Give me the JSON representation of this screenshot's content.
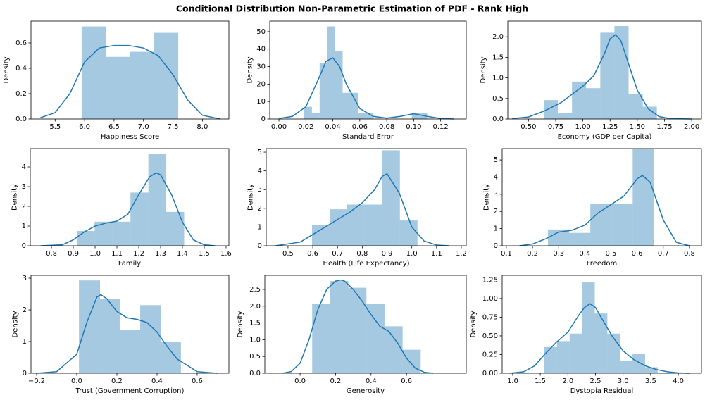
{
  "title": "Conditional Distribution Non-Parametric Estimation of PDF - Rank High",
  "chart_data": [
    {
      "type": "histogram",
      "xlabel": "Happiness Score",
      "ylabel": "Density",
      "color": "#1f77b4",
      "bins": [
        5.95,
        6.36,
        6.77,
        7.18,
        7.59
      ],
      "counts": [
        0.73,
        0.49,
        0.53,
        0.68
      ],
      "kde": {
        "x": [
          5.25,
          5.5,
          5.75,
          6.0,
          6.25,
          6.5,
          6.75,
          7.0,
          7.25,
          7.5,
          7.75,
          8.0,
          8.3
        ],
        "y": [
          0.01,
          0.05,
          0.2,
          0.45,
          0.56,
          0.58,
          0.58,
          0.56,
          0.5,
          0.35,
          0.15,
          0.03,
          0.0
        ]
      },
      "xlim": [
        5.09,
        8.45
      ],
      "ylim": [
        0,
        0.772
      ],
      "xticks": [
        5.5,
        {
          "value": 6,
          "label": "6.0"
        },
        6.5,
        {
          "value": 7,
          "label": "7.0"
        },
        7.5,
        {
          "value": 8,
          "label": "8.0"
        }
      ],
      "yticks": [
        {
          "value": 0,
          "label": "0.0"
        },
        0.2,
        0.4,
        0.6
      ]
    },
    {
      "type": "histogram",
      "xlabel": "Standard Error",
      "ylabel": "Density",
      "color": "#1f77b4",
      "bins": [
        0.0188,
        0.0245,
        0.0302,
        0.0359,
        0.0416,
        0.0473,
        0.053,
        0.0587,
        0.0644,
        0.0701,
        0.0758,
        0.0815,
        0.0872,
        0.0929,
        0.0986,
        0.1043,
        0.11
      ],
      "counts": [
        7,
        3.5,
        32,
        53,
        39,
        15,
        15,
        3.5,
        3.5,
        0,
        0,
        0,
        0,
        0,
        3.5,
        3.5
      ],
      "kde": {
        "x": [
          0,
          0.01,
          0.02,
          0.03,
          0.035,
          0.04,
          0.045,
          0.05,
          0.06,
          0.07,
          0.08,
          0.09,
          0.1,
          0.11,
          0.12,
          0.13
        ],
        "y": [
          0.3,
          1.5,
          7,
          24,
          33,
          35,
          30,
          20,
          6,
          1.5,
          0.5,
          1.5,
          3,
          1.5,
          0.3,
          0
        ]
      },
      "xlim": [
        -0.0068,
        0.139
      ],
      "ylim": [
        0,
        56
      ],
      "xticks": [
        {
          "value": 0,
          "label": "0.00"
        },
        0.02,
        0.04,
        0.06,
        0.08,
        {
          "value": 0.1,
          "label": "0.10"
        },
        0.12
      ],
      "yticks": [
        0,
        10,
        20,
        30,
        40,
        50
      ]
    },
    {
      "type": "histogram",
      "xlabel": "Economy (GDP per Capita)",
      "ylabel": "Density",
      "color": "#1f77b4",
      "bins": [
        0.64,
        0.77,
        0.9,
        1.03,
        1.16,
        1.29,
        1.42,
        1.55,
        1.68
      ],
      "counts": [
        0.46,
        0.15,
        0.91,
        0.75,
        2.1,
        2.26,
        0.61,
        0.3
      ],
      "kde": {
        "x": [
          0.35,
          0.5,
          0.65,
          0.8,
          0.9,
          1.0,
          1.1,
          1.2,
          1.25,
          1.3,
          1.35,
          1.4,
          1.5,
          1.6,
          1.7,
          1.8,
          2.0
        ],
        "y": [
          0.01,
          0.05,
          0.2,
          0.4,
          0.6,
          0.8,
          1.05,
          1.6,
          1.95,
          2.05,
          1.9,
          1.5,
          0.7,
          0.25,
          0.06,
          0.01,
          0
        ]
      },
      "xlim": [
        0.31,
        2.09
      ],
      "ylim": [
        0,
        2.38
      ],
      "xticks": [
        {
          "value": 0.5,
          "label": "0.50"
        },
        0.75,
        {
          "value": 1,
          "label": "1.00"
        },
        1.25,
        {
          "value": 1.5,
          "label": "1.50"
        },
        1.75,
        {
          "value": 2,
          "label": "2.00"
        }
      ],
      "yticks": [
        {
          "value": 0,
          "label": "0.0"
        },
        0.5,
        {
          "value": 1,
          "label": "1.0"
        },
        1.5,
        {
          "value": 2,
          "label": "2.0"
        }
      ]
    },
    {
      "type": "histogram",
      "xlabel": "Family",
      "ylabel": "Density",
      "color": "#1f77b4",
      "bins": [
        0.916,
        0.998,
        1.08,
        1.162,
        1.244,
        1.326,
        1.408
      ],
      "counts": [
        0.75,
        1.22,
        1.22,
        2.7,
        4.65,
        1.72
      ],
      "kde": {
        "x": [
          0.75,
          0.85,
          0.9,
          0.95,
          1.0,
          1.05,
          1.1,
          1.15,
          1.2,
          1.25,
          1.28,
          1.3,
          1.35,
          1.4,
          1.45,
          1.5,
          1.55
        ],
        "y": [
          0,
          0.05,
          0.3,
          0.7,
          1.0,
          1.15,
          1.25,
          1.6,
          2.6,
          3.5,
          3.7,
          3.6,
          2.6,
          1.2,
          0.3,
          0.05,
          0
        ]
      },
      "xlim": [
        0.703,
        1.613
      ],
      "ylim": [
        0,
        4.93
      ],
      "xticks": [
        0.8,
        0.9,
        {
          "value": 1,
          "label": "1.0"
        },
        1.1,
        1.2,
        1.3,
        1.4,
        1.5,
        1.6
      ],
      "yticks": [
        0,
        1,
        2,
        3,
        4
      ]
    },
    {
      "type": "histogram",
      "xlabel": "Health (Life Expectancy)",
      "ylabel": "Density",
      "color": "#1f77b4",
      "bins": [
        0.597,
        0.668,
        0.739,
        0.81,
        0.881,
        0.952,
        1.023
      ],
      "counts": [
        1.1,
        1.95,
        2.2,
        2.2,
        5.1,
        1.35
      ],
      "kde": {
        "x": [
          0.45,
          0.55,
          0.6,
          0.65,
          0.7,
          0.75,
          0.8,
          0.85,
          0.88,
          0.9,
          0.95,
          1.0,
          1.05,
          1.1,
          1.15
        ],
        "y": [
          0,
          0.2,
          0.6,
          1.0,
          1.4,
          1.8,
          2.3,
          3.0,
          3.7,
          3.85,
          2.8,
          1.0,
          0.25,
          0.04,
          0
        ]
      },
      "xlim": [
        0.412,
        1.22
      ],
      "ylim": [
        0,
        5.19
      ],
      "xticks": [
        0.5,
        0.6,
        0.7,
        0.8,
        0.9,
        {
          "value": 1,
          "label": "1.0"
        },
        1.1,
        1.2
      ],
      "yticks": [
        0,
        1,
        2,
        3,
        4,
        5
      ]
    },
    {
      "type": "histogram",
      "xlabel": "Freedom",
      "ylabel": "Density",
      "color": "#1f77b4",
      "bins": [
        0.259,
        0.34,
        0.421,
        0.502,
        0.583,
        0.664
      ],
      "counts": [
        0.95,
        0.75,
        2.45,
        2.45,
        5.65
      ],
      "kde": {
        "x": [
          0.15,
          0.2,
          0.25,
          0.3,
          0.35,
          0.4,
          0.45,
          0.5,
          0.55,
          0.6,
          0.62,
          0.65,
          0.7,
          0.75,
          0.8
        ],
        "y": [
          0,
          0.1,
          0.4,
          0.8,
          0.9,
          1.2,
          1.9,
          2.4,
          2.9,
          3.9,
          4.1,
          3.7,
          1.5,
          0.2,
          0
        ]
      },
      "xlim": [
        0.084,
        0.846
      ],
      "ylim": [
        0,
        5.66
      ],
      "xticks": [
        0.1,
        0.2,
        0.3,
        0.4,
        0.5,
        0.6,
        0.7,
        0.8
      ],
      "yticks": [
        0,
        1,
        2,
        3,
        4,
        5
      ]
    },
    {
      "type": "histogram",
      "xlabel": "Trust (Government Corruption)",
      "ylabel": "Density",
      "color": "#1f77b4",
      "bins": [
        0.011,
        0.116,
        0.214,
        0.316,
        0.418,
        0.519
      ],
      "counts": [
        2.93,
        2.35,
        1.37,
        2.15,
        0.98
      ],
      "kde": {
        "x": [
          -0.2,
          -0.1,
          0,
          0.05,
          0.1,
          0.12,
          0.15,
          0.2,
          0.25,
          0.3,
          0.35,
          0.4,
          0.45,
          0.5,
          0.6,
          0.7
        ],
        "y": [
          0,
          0.05,
          0.6,
          1.6,
          2.4,
          2.48,
          2.35,
          1.95,
          1.75,
          1.7,
          1.6,
          1.3,
          0.85,
          0.45,
          0.05,
          0
        ]
      },
      "xlim": [
        -0.228,
        0.758
      ],
      "ylim": [
        0,
        3.09
      ],
      "xticks": [
        {
          "value": -0.2,
          "label": "−0.2"
        },
        {
          "value": 0,
          "label": "0.0"
        },
        0.2,
        0.4,
        0.6
      ],
      "yticks": [
        0,
        1,
        2,
        3
      ]
    },
    {
      "type": "histogram",
      "xlabel": "Generosity",
      "ylabel": "Density",
      "color": "#1f77b4",
      "bins": [
        0.068,
        0.17,
        0.272,
        0.374,
        0.476,
        0.578,
        0.68
      ],
      "counts": [
        2.08,
        2.75,
        2.55,
        2.08,
        1.4,
        0.7
      ],
      "kde": {
        "x": [
          -0.1,
          -0.05,
          0,
          0.05,
          0.1,
          0.15,
          0.2,
          0.23,
          0.25,
          0.3,
          0.35,
          0.4,
          0.45,
          0.5,
          0.55,
          0.6,
          0.65,
          0.7,
          0.75
        ],
        "y": [
          0,
          0.05,
          0.3,
          1.0,
          1.9,
          2.5,
          2.75,
          2.78,
          2.75,
          2.5,
          2.15,
          1.75,
          1.4,
          1.25,
          0.9,
          0.45,
          0.15,
          0.03,
          0
        ]
      },
      "xlim": [
        -0.199,
        0.937
      ],
      "ylim": [
        0,
        2.92
      ],
      "xticks": [
        {
          "value": 0,
          "label": "0.0"
        },
        0.2,
        0.4,
        0.6
      ],
      "yticks": [
        {
          "value": 0,
          "label": "0.0"
        },
        0.5,
        {
          "value": 1,
          "label": "1.0"
        },
        1.5,
        {
          "value": 2,
          "label": "2.0"
        },
        2.5
      ]
    },
    {
      "type": "histogram",
      "xlabel": "Dystopia Residual",
      "ylabel": "Density",
      "color": "#1f77b4",
      "bins": [
        1.575,
        1.803,
        2.031,
        2.259,
        2.487,
        2.715,
        2.943,
        3.171,
        3.399,
        3.627
      ],
      "counts": [
        0.35,
        0.43,
        0.53,
        1.22,
        0.8,
        0.53,
        0.17,
        0.26,
        0.08
      ],
      "kde": {
        "x": [
          0.95,
          1.2,
          1.4,
          1.6,
          1.8,
          2.0,
          2.2,
          2.3,
          2.4,
          2.5,
          2.6,
          2.8,
          3.0,
          3.2,
          3.4,
          3.6,
          3.8,
          4.0,
          4.2
        ],
        "y": [
          0,
          0.02,
          0.1,
          0.27,
          0.42,
          0.55,
          0.78,
          0.88,
          0.93,
          0.88,
          0.75,
          0.5,
          0.3,
          0.18,
          0.1,
          0.05,
          0.02,
          0.005,
          0
        ]
      },
      "xlim": [
        0.81,
        4.42
      ],
      "ylim": [
        0,
        1.31
      ],
      "xticks": [
        {
          "value": 1,
          "label": "1.0"
        },
        1.5,
        {
          "value": 2,
          "label": "2.0"
        },
        2.5,
        {
          "value": 3,
          "label": "3.0"
        },
        3.5,
        {
          "value": 4,
          "label": "4.0"
        }
      ],
      "yticks": [
        {
          "value": 0,
          "label": "0.00"
        },
        0.25,
        {
          "value": 0.5,
          "label": "0.50"
        },
        0.75,
        {
          "value": 1,
          "label": "1.00"
        },
        1.25
      ]
    }
  ]
}
